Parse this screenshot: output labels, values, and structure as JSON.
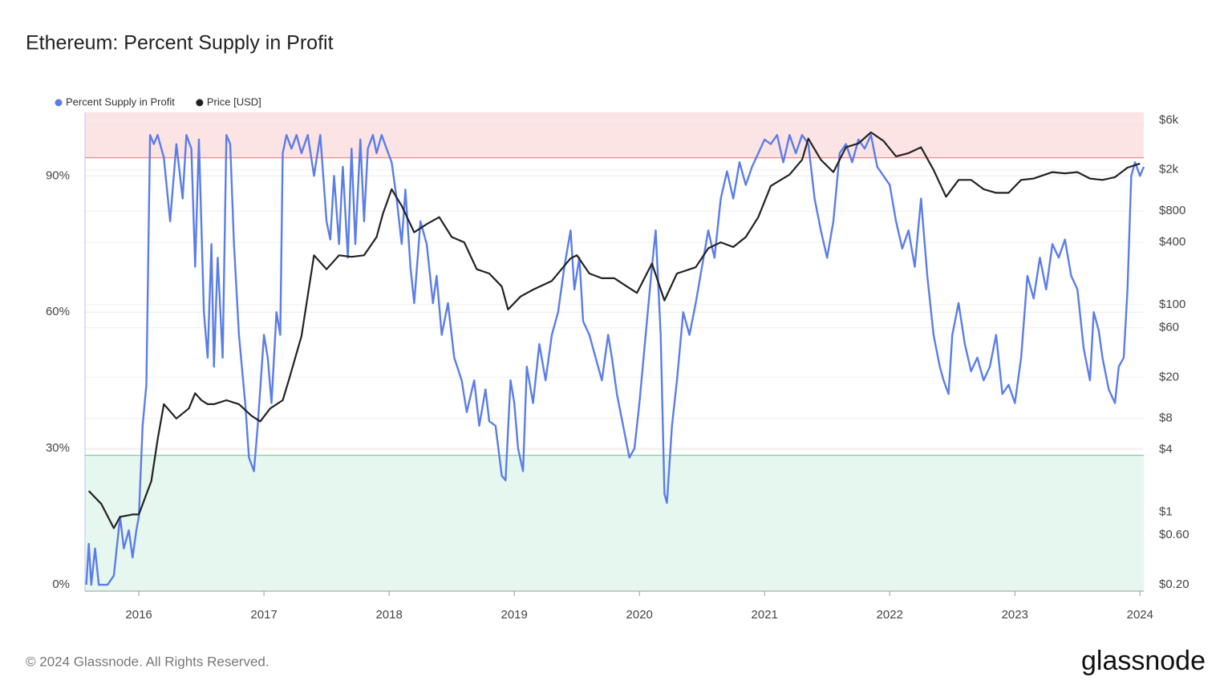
{
  "chart_data": {
    "type": "line",
    "title": "Ethereum: Percent Supply in Profit",
    "footer": "© 2024 Glassnode. All Rights Reserved.",
    "brand": "glassnode",
    "xlim": [
      2015.57,
      2024.03
    ],
    "xticks": [
      2016,
      2017,
      2018,
      2019,
      2020,
      2021,
      2022,
      2023,
      2024
    ],
    "ylim": [
      -1.4,
      104
    ],
    "yticks": [
      {
        "value": 0,
        "label": "0%"
      },
      {
        "value": 30,
        "label": "30%"
      },
      {
        "value": 60,
        "label": "60%"
      },
      {
        "value": 90,
        "label": "90%"
      }
    ],
    "y2lim": [
      0.173,
      7180
    ],
    "y2scale": "log",
    "y2ticks": [
      {
        "value": 0.2,
        "label": "$0.20"
      },
      {
        "value": 0.6,
        "label": "$0.60"
      },
      {
        "value": 1,
        "label": "$1"
      },
      {
        "value": 4,
        "label": "$4"
      },
      {
        "value": 8,
        "label": "$8"
      },
      {
        "value": 20,
        "label": "$20"
      },
      {
        "value": 60,
        "label": "$60"
      },
      {
        "value": 100,
        "label": "$100"
      },
      {
        "value": 400,
        "label": "$400"
      },
      {
        "value": 800,
        "label": "$800"
      },
      {
        "value": 2000,
        "label": "$2k"
      },
      {
        "value": 6000,
        "label": "$6k"
      }
    ],
    "grid": true,
    "bands": [
      {
        "above": 94,
        "color": "#fde4e4",
        "line": "#e88a8a"
      },
      {
        "below": 28.5,
        "color": "#e6f7ef",
        "line": "#7ccfa3"
      }
    ],
    "series": [
      {
        "name": "Percent Supply in Profit",
        "color": "#5b7de8",
        "x": [
          2015.58,
          2015.6,
          2015.62,
          2015.65,
          2015.68,
          2015.75,
          2015.8,
          2015.85,
          2015.88,
          2015.92,
          2015.95,
          2015.98,
          2016.0,
          2016.03,
          2016.06,
          2016.09,
          2016.12,
          2016.15,
          2016.2,
          2016.25,
          2016.3,
          2016.35,
          2016.38,
          2016.42,
          2016.45,
          2016.48,
          2016.52,
          2016.55,
          2016.58,
          2016.6,
          2016.63,
          2016.67,
          2016.7,
          2016.73,
          2016.76,
          2016.8,
          2016.85,
          2016.88,
          2016.92,
          2016.95,
          2017.0,
          2017.03,
          2017.06,
          2017.1,
          2017.13,
          2017.15,
          2017.18,
          2017.22,
          2017.26,
          2017.3,
          2017.35,
          2017.4,
          2017.45,
          2017.5,
          2017.53,
          2017.56,
          2017.6,
          2017.63,
          2017.67,
          2017.7,
          2017.73,
          2017.77,
          2017.8,
          2017.83,
          2017.87,
          2017.9,
          2017.94,
          2017.98,
          2018.02,
          2018.06,
          2018.1,
          2018.13,
          2018.17,
          2018.2,
          2018.25,
          2018.3,
          2018.35,
          2018.38,
          2018.42,
          2018.47,
          2018.52,
          2018.58,
          2018.62,
          2018.68,
          2018.72,
          2018.77,
          2018.8,
          2018.85,
          2018.9,
          2018.93,
          2018.97,
          2019.0,
          2019.03,
          2019.07,
          2019.1,
          2019.15,
          2019.2,
          2019.25,
          2019.3,
          2019.35,
          2019.4,
          2019.45,
          2019.48,
          2019.52,
          2019.55,
          2019.6,
          2019.65,
          2019.7,
          2019.75,
          2019.78,
          2019.82,
          2019.87,
          2019.92,
          2019.96,
          2020.0,
          2020.05,
          2020.1,
          2020.13,
          2020.17,
          2020.2,
          2020.22,
          2020.26,
          2020.3,
          2020.35,
          2020.4,
          2020.45,
          2020.5,
          2020.55,
          2020.6,
          2020.65,
          2020.7,
          2020.75,
          2020.8,
          2020.85,
          2020.9,
          2020.95,
          2021.0,
          2021.05,
          2021.1,
          2021.15,
          2021.2,
          2021.25,
          2021.3,
          2021.35,
          2021.4,
          2021.45,
          2021.5,
          2021.55,
          2021.6,
          2021.65,
          2021.7,
          2021.75,
          2021.8,
          2021.85,
          2021.9,
          2021.95,
          2022.0,
          2022.05,
          2022.1,
          2022.15,
          2022.2,
          2022.25,
          2022.3,
          2022.35,
          2022.4,
          2022.43,
          2022.47,
          2022.5,
          2022.55,
          2022.6,
          2022.65,
          2022.7,
          2022.75,
          2022.8,
          2022.85,
          2022.9,
          2022.95,
          2023.0,
          2023.05,
          2023.1,
          2023.15,
          2023.2,
          2023.25,
          2023.3,
          2023.35,
          2023.4,
          2023.45,
          2023.5,
          2023.55,
          2023.6,
          2023.63,
          2023.67,
          2023.7,
          2023.75,
          2023.8,
          2023.83,
          2023.87,
          2023.9,
          2023.93,
          2023.96,
          2024.0,
          2024.03
        ],
        "values": [
          0,
          9,
          0,
          8,
          0,
          0,
          2,
          15,
          8,
          12,
          6,
          12,
          15,
          35,
          44,
          99,
          97,
          99,
          94,
          80,
          97,
          85,
          99,
          96,
          70,
          98,
          60,
          50,
          75,
          48,
          72,
          50,
          99,
          97,
          75,
          55,
          40,
          28,
          25,
          35,
          55,
          50,
          40,
          60,
          55,
          95,
          99,
          96,
          99,
          95,
          99,
          90,
          99,
          80,
          76,
          90,
          75,
          92,
          72,
          96,
          75,
          98,
          80,
          96,
          99,
          95,
          99,
          96,
          93,
          85,
          75,
          87,
          70,
          62,
          80,
          75,
          62,
          68,
          55,
          62,
          50,
          45,
          38,
          45,
          35,
          43,
          36,
          35,
          24,
          23,
          45,
          40,
          30,
          25,
          48,
          40,
          53,
          45,
          55,
          60,
          70,
          78,
          65,
          72,
          58,
          55,
          50,
          45,
          55,
          50,
          42,
          35,
          28,
          30,
          40,
          55,
          70,
          78,
          55,
          20,
          18,
          35,
          45,
          60,
          55,
          62,
          70,
          78,
          72,
          85,
          91,
          85,
          93,
          88,
          92,
          95,
          98,
          97,
          99,
          93,
          99,
          95,
          99,
          97,
          85,
          78,
          72,
          80,
          95,
          97,
          93,
          98,
          96,
          99,
          92,
          90,
          88,
          80,
          74,
          78,
          70,
          85,
          68,
          55,
          48,
          45,
          42,
          55,
          62,
          53,
          47,
          50,
          45,
          48,
          55,
          42,
          44,
          40,
          50,
          68,
          63,
          72,
          65,
          75,
          72,
          76,
          68,
          65,
          52,
          45,
          60,
          56,
          50,
          43,
          40,
          48,
          50,
          65,
          90,
          93,
          90,
          92
        ]
      },
      {
        "name": "Price [USD]",
        "color": "#222222",
        "axis": "y2",
        "x": [
          2015.6,
          2015.7,
          2015.8,
          2015.85,
          2015.95,
          2016.0,
          2016.1,
          2016.15,
          2016.2,
          2016.3,
          2016.4,
          2016.45,
          2016.5,
          2016.55,
          2016.6,
          2016.7,
          2016.8,
          2016.9,
          2016.97,
          2017.05,
          2017.15,
          2017.2,
          2017.3,
          2017.4,
          2017.5,
          2017.6,
          2017.7,
          2017.8,
          2017.9,
          2017.95,
          2018.02,
          2018.1,
          2018.2,
          2018.3,
          2018.4,
          2018.5,
          2018.6,
          2018.7,
          2018.8,
          2018.9,
          2018.95,
          2019.05,
          2019.15,
          2019.3,
          2019.45,
          2019.5,
          2019.6,
          2019.7,
          2019.8,
          2019.9,
          2019.98,
          2020.1,
          2020.2,
          2020.3,
          2020.45,
          2020.55,
          2020.65,
          2020.75,
          2020.85,
          2020.95,
          2021.05,
          2021.2,
          2021.3,
          2021.35,
          2021.45,
          2021.55,
          2021.65,
          2021.75,
          2021.85,
          2021.95,
          2022.05,
          2022.15,
          2022.25,
          2022.35,
          2022.45,
          2022.55,
          2022.65,
          2022.75,
          2022.85,
          2022.95,
          2023.05,
          2023.15,
          2023.3,
          2023.4,
          2023.5,
          2023.6,
          2023.7,
          2023.8,
          2023.9,
          2024.0
        ],
        "values": [
          1.6,
          1.2,
          0.7,
          0.9,
          0.95,
          0.95,
          2,
          5,
          11,
          8,
          10,
          14,
          12,
          11,
          11,
          12,
          11,
          8.5,
          7.5,
          10,
          12,
          19,
          50,
          300,
          220,
          300,
          290,
          300,
          450,
          750,
          1300,
          900,
          500,
          600,
          700,
          450,
          400,
          220,
          200,
          150,
          90,
          120,
          140,
          170,
          280,
          300,
          200,
          180,
          180,
          150,
          130,
          250,
          110,
          200,
          230,
          350,
          400,
          360,
          450,
          700,
          1400,
          1800,
          2500,
          4000,
          2500,
          1900,
          3300,
          3600,
          4600,
          3800,
          2700,
          2900,
          3300,
          2000,
          1100,
          1600,
          1600,
          1300,
          1200,
          1200,
          1600,
          1650,
          1900,
          1850,
          1900,
          1650,
          1600,
          1700,
          2100,
          2300
        ]
      }
    ]
  }
}
